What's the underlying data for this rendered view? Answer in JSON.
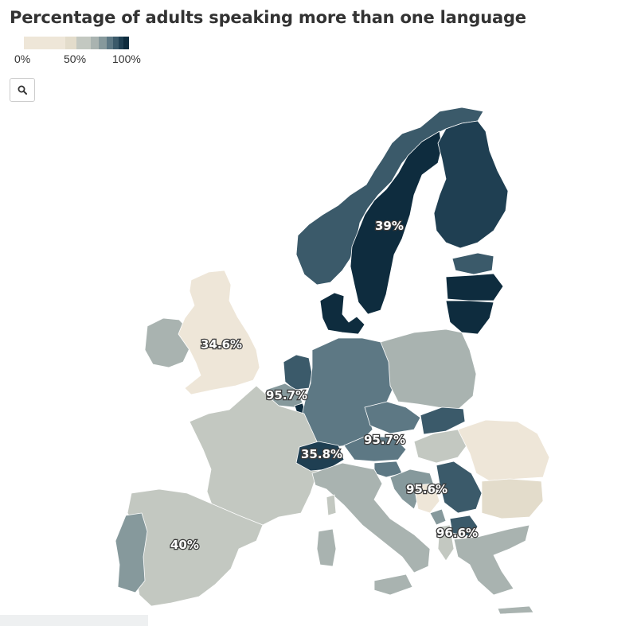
{
  "title": "Percentage of adults speaking more than one language",
  "legend": {
    "ticks": [
      "0%",
      "50%",
      "100%"
    ],
    "colors": [
      "#eee6d8",
      "#e3dccb",
      "#c3c8c1",
      "#a9b3b0",
      "#86999c",
      "#5d7884",
      "#3b5a6a",
      "#1f3f52",
      "#0e2c3e"
    ]
  },
  "zoom_button": {
    "icon": "search-icon"
  },
  "map_labels": {
    "sweden": "39%",
    "uk": "34.6%",
    "belgium": "95.7%",
    "switzerland": "35.8%",
    "slovakia": "95.7%",
    "bosnia": "95.6%",
    "macedonia": "96.6%",
    "spain": "40%"
  },
  "colors": {
    "land_light": "#eee6d8",
    "land_mid": "#c3c8c1",
    "land_gray": "#a9b3b0",
    "land_slate": "#86999c",
    "land_dark": "#3b5a6a",
    "land_darkest": "#0e2c3e"
  }
}
